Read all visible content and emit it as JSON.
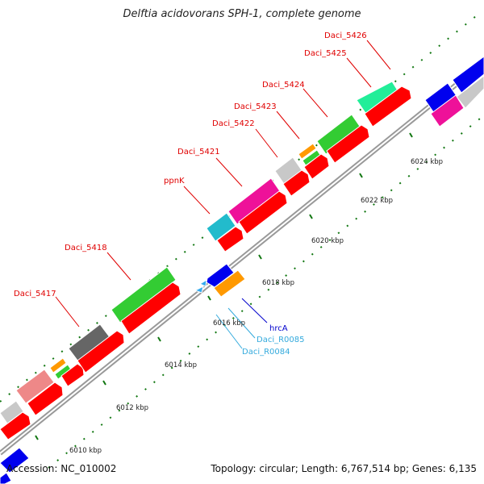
{
  "title": "Delftia acidovorans SPH-1, complete genome",
  "accession": "Accession: NC_010002",
  "summary": "Topology: circular; Length: 6,767,514 bp; Genes: 6,135",
  "ticks": [
    "6010 kbp",
    "6012 kbp",
    "6014 kbp",
    "6016 kbp",
    "6018 kbp",
    "6020 kbp",
    "6022 kbp",
    "6024 kbp"
  ],
  "gene_labels": [
    {
      "text": "Daci_5417",
      "color": "#e00000"
    },
    {
      "text": "Daci_5418",
      "color": "#e00000"
    },
    {
      "text": "ppnK",
      "color": "#e00000"
    },
    {
      "text": "Daci_5421",
      "color": "#e00000"
    },
    {
      "text": "Daci_5422",
      "color": "#e00000"
    },
    {
      "text": "Daci_5423",
      "color": "#e00000"
    },
    {
      "text": "Daci_5424",
      "color": "#e00000"
    },
    {
      "text": "Daci_5425",
      "color": "#e00000"
    },
    {
      "text": "Daci_5426",
      "color": "#e00000"
    },
    {
      "text": "hrcA",
      "color": "#0000cc"
    },
    {
      "text": "Daci_R0085",
      "color": "#33aadd"
    },
    {
      "text": "Daci_R0084",
      "color": "#33aadd"
    }
  ],
  "colors": {
    "cog_red": "#ff0000",
    "cog_green": "#33cc33",
    "cog_grey": "#666666",
    "cog_lightgrey": "#c8c8c8",
    "cog_pink": "#ee1199",
    "cog_cyan": "#22bbcc",
    "cog_salmon": "#ee8888",
    "cog_orange": "#ff9900",
    "cog_aqua": "#22ee99",
    "cog_blue": "#0000ee",
    "rna_blue": "#33aaee",
    "backbone": "#888888",
    "tick_green": "#117711"
  }
}
